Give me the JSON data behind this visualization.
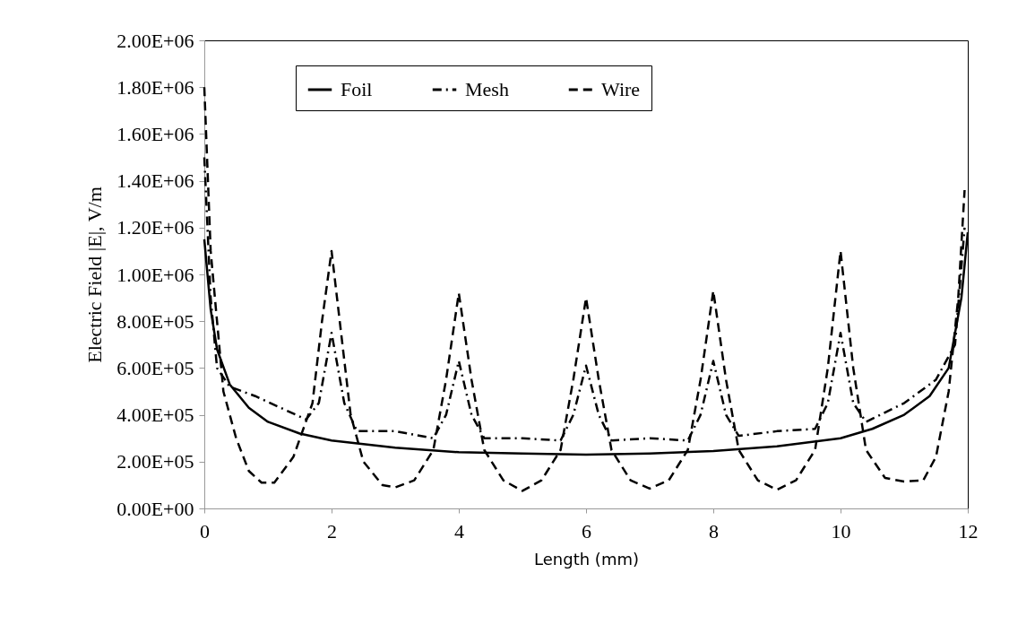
{
  "chart_data": {
    "type": "line",
    "xlabel": "Length (mm)",
    "ylabel": "Electric Field |E|, V/m",
    "xlim": [
      0,
      12
    ],
    "xticks": [
      0,
      2,
      4,
      6,
      8,
      10,
      12
    ],
    "ylim": [
      0,
      2000000
    ],
    "yticks": [
      {
        "value": 0,
        "label": "0.00E+00"
      },
      {
        "value": 200000,
        "label": "2.00E+05"
      },
      {
        "value": 400000,
        "label": "4.00E+05"
      },
      {
        "value": 600000,
        "label": "6.00E+05"
      },
      {
        "value": 800000,
        "label": "8.00E+05"
      },
      {
        "value": 1000000,
        "label": "1.00E+06"
      },
      {
        "value": 1200000,
        "label": "1.20E+06"
      },
      {
        "value": 1400000,
        "label": "1.40E+06"
      },
      {
        "value": 1600000,
        "label": "1.60E+06"
      },
      {
        "value": 1800000,
        "label": "1.80E+06"
      },
      {
        "value": 2000000,
        "label": "2.00E+06"
      }
    ],
    "grid": false,
    "legend": "top",
    "series": [
      {
        "name": "Foil",
        "color": "#000000",
        "line_style": "solid",
        "x": [
          0,
          0.1,
          0.2,
          0.4,
          0.7,
          1,
          1.5,
          2,
          3,
          4,
          5,
          6,
          7,
          8,
          9,
          10,
          10.5,
          11,
          11.4,
          11.7,
          11.9,
          12
        ],
        "values": [
          1150000,
          850000,
          680000,
          530000,
          430000,
          370000,
          320000,
          290000,
          260000,
          240000,
          235000,
          230000,
          235000,
          245000,
          265000,
          300000,
          340000,
          400000,
          480000,
          600000,
          900000,
          1180000
        ]
      },
      {
        "name": "Mesh",
        "color": "#000000",
        "line_style": "dashdot",
        "x": [
          0,
          0.1,
          0.2,
          0.4,
          0.8,
          1.2,
          1.6,
          1.8,
          2,
          2.2,
          2.4,
          3,
          3.6,
          3.8,
          4,
          4.2,
          4.4,
          5,
          5.6,
          5.8,
          6,
          6.2,
          6.4,
          7,
          7.6,
          7.8,
          8,
          8.2,
          8.4,
          9,
          9.6,
          9.8,
          10,
          10.2,
          10.4,
          11,
          11.5,
          11.8,
          11.95
        ],
        "values": [
          1500000,
          900000,
          600000,
          520000,
          480000,
          430000,
          380000,
          450000,
          750000,
          450000,
          330000,
          330000,
          300000,
          400000,
          630000,
          400000,
          300000,
          300000,
          290000,
          400000,
          610000,
          400000,
          290000,
          300000,
          290000,
          400000,
          630000,
          400000,
          310000,
          330000,
          340000,
          450000,
          750000,
          450000,
          370000,
          450000,
          550000,
          700000,
          1200000
        ]
      },
      {
        "name": "Wire",
        "color": "#000000",
        "line_style": "dashed",
        "x": [
          0,
          0.1,
          0.3,
          0.5,
          0.7,
          0.9,
          1.1,
          1.4,
          1.7,
          1.85,
          2,
          2.15,
          2.3,
          2.5,
          2.8,
          3,
          3.3,
          3.6,
          3.8,
          4,
          4.2,
          4.4,
          4.7,
          5,
          5.3,
          5.6,
          5.8,
          6,
          6.2,
          6.4,
          6.7,
          7,
          7.3,
          7.6,
          7.8,
          8,
          8.2,
          8.4,
          8.7,
          9,
          9.3,
          9.6,
          9.8,
          10,
          10.2,
          10.4,
          10.7,
          11,
          11.3,
          11.5,
          11.7,
          11.85,
          11.95
        ],
        "values": [
          1800000,
          1100000,
          500000,
          300000,
          160000,
          110000,
          110000,
          220000,
          450000,
          800000,
          1100000,
          750000,
          400000,
          200000,
          100000,
          90000,
          120000,
          250000,
          550000,
          920000,
          550000,
          250000,
          120000,
          75000,
          120000,
          250000,
          550000,
          900000,
          550000,
          250000,
          120000,
          85000,
          120000,
          250000,
          550000,
          930000,
          550000,
          250000,
          120000,
          80000,
          120000,
          250000,
          600000,
          1100000,
          600000,
          250000,
          130000,
          115000,
          120000,
          220000,
          500000,
          900000,
          1360000
        ]
      }
    ]
  }
}
